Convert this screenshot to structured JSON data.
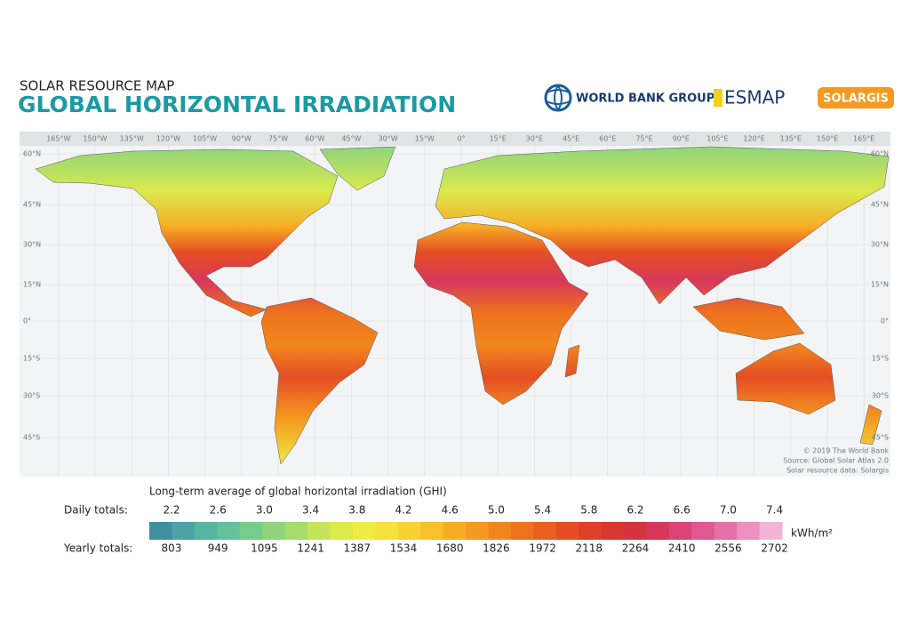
{
  "header": {
    "subtitle": "SOLAR RESOURCE MAP",
    "title": "GLOBAL HORIZONTAL IRRADIATION"
  },
  "logos": {
    "world_bank": "WORLD BANK GROUP",
    "esmap": "ESMAP",
    "solargis": "SOLARGIS"
  },
  "map": {
    "longitude_labels": [
      "165°W",
      "150°W",
      "135°W",
      "120°W",
      "105°W",
      "90°W",
      "75°W",
      "60°W",
      "45°W",
      "30°W",
      "15°W",
      "0°",
      "15°E",
      "30°E",
      "45°E",
      "60°E",
      "75°E",
      "90°E",
      "105°E",
      "120°E",
      "135°E",
      "150°E",
      "165°E"
    ],
    "latitude_labels": [
      "60°N",
      "45°N",
      "30°N",
      "15°N",
      "0°",
      "15°S",
      "30°S",
      "45°S"
    ],
    "credits": [
      "© 2019 The World Bank",
      "Source: Global Solar Atlas 2.0",
      "Solar resource data: Solargis"
    ]
  },
  "legend": {
    "title": "Long-term average of global horizontal irradiation (GHI)",
    "daily_label": "Daily totals:",
    "daily_values": [
      "2.2",
      "2.6",
      "3.0",
      "3.4",
      "3.8",
      "4.2",
      "4.6",
      "5.0",
      "5.4",
      "5.8",
      "6.2",
      "6.6",
      "7.0",
      "7.4"
    ],
    "unit": "kWh/m²",
    "yearly_label": "Yearly totals:",
    "yearly_values": [
      803,
      949,
      1095,
      1241,
      1387,
      1534,
      1680,
      1826,
      1972,
      2118,
      2264,
      2410,
      2556,
      2702
    ],
    "colors": [
      "#3f8fa0",
      "#4aa3a5",
      "#55b5a0",
      "#62c29a",
      "#76cc8c",
      "#8fd47c",
      "#a8dc6a",
      "#c4e45a",
      "#dcea4c",
      "#eeec44",
      "#f7e23c",
      "#f8d232",
      "#f8c02a",
      "#f7ac24",
      "#f59a20",
      "#f2861e",
      "#ee721e",
      "#ea5f20",
      "#e54e24",
      "#de4028",
      "#d8382e",
      "#d43440",
      "#d6385a",
      "#da4476",
      "#df5890",
      "#e470a8",
      "#ec90c0",
      "#f4b4d6"
    ]
  }
}
